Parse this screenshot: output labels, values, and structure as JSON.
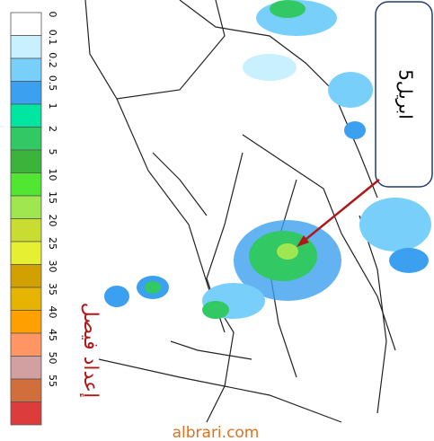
{
  "legend": {
    "items": [
      {
        "label": "0",
        "color": "#ffffff"
      },
      {
        "label": "0.1",
        "color": "#c8f0ff"
      },
      {
        "label": "0.2",
        "color": "#78d0fa"
      },
      {
        "label": "0.5",
        "color": "#3ca0f0"
      },
      {
        "label": "1",
        "color": "#00e6a0"
      },
      {
        "label": "2",
        "color": "#32c864"
      },
      {
        "label": "5",
        "color": "#3cb43c"
      },
      {
        "label": "10",
        "color": "#50e632"
      },
      {
        "label": "15",
        "color": "#a0e650"
      },
      {
        "label": "20",
        "color": "#c8dc32"
      },
      {
        "label": "25",
        "color": "#e6f032"
      },
      {
        "label": "30",
        "color": "#d2a000"
      },
      {
        "label": "35",
        "color": "#e6b400"
      },
      {
        "label": "40",
        "color": "#ffa000"
      },
      {
        "label": "45",
        "color": "#ff9664"
      },
      {
        "label": "50",
        "color": "#d2a0a0"
      },
      {
        "label": "55",
        "color": "#d26e3c"
      },
      {
        "label": null,
        "color": "#dc3c3c"
      }
    ]
  },
  "callout": {
    "text": "5ابريل"
  },
  "author": {
    "text": "إعداد فيصل"
  },
  "watermark": {
    "text": "albrari.com"
  }
}
